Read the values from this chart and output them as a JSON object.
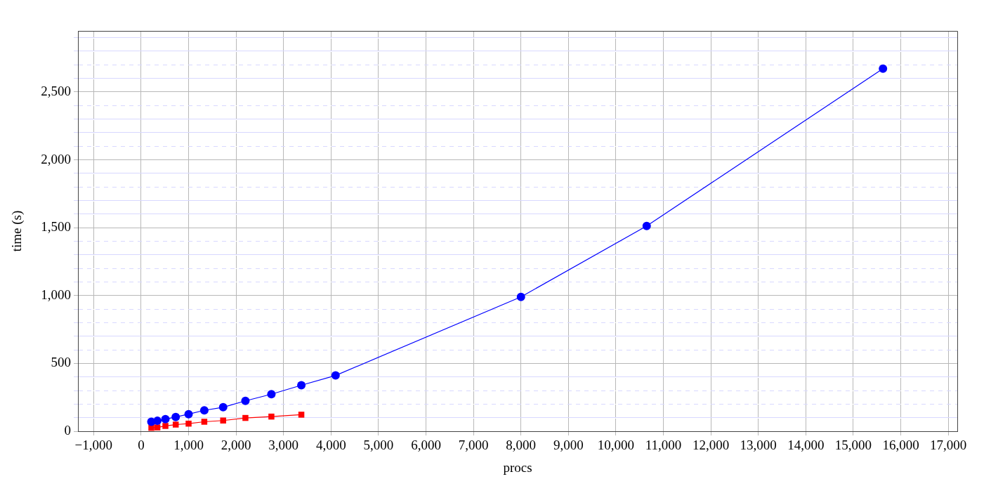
{
  "chart_data": {
    "type": "line",
    "xlabel": "procs",
    "ylabel": "time (s)",
    "xlim": [
      -1330,
      17190
    ],
    "ylim": [
      0,
      2950
    ],
    "xticks": [
      {
        "value": -1000,
        "label": "−1,000"
      },
      0,
      {
        "value": 1000,
        "label": "1,000"
      },
      {
        "value": 2000,
        "label": "2,000"
      },
      {
        "value": 3000,
        "label": "3,000"
      },
      {
        "value": 4000,
        "label": "4,000"
      },
      {
        "value": 5000,
        "label": "5,000"
      },
      {
        "value": 6000,
        "label": "6,000"
      },
      {
        "value": 7000,
        "label": "7,000"
      },
      {
        "value": 8000,
        "label": "8,000"
      },
      {
        "value": 9000,
        "label": "9,000"
      },
      {
        "value": 10000,
        "label": "10,000"
      },
      {
        "value": 11000,
        "label": "11,000"
      },
      {
        "value": 12000,
        "label": "12,000"
      },
      {
        "value": 13000,
        "label": "13,000"
      },
      {
        "value": 14000,
        "label": "14,000"
      },
      {
        "value": 15000,
        "label": "15,000"
      },
      {
        "value": 16000,
        "label": "16,000"
      },
      {
        "value": 17000,
        "label": "17,000"
      }
    ],
    "yticks": [
      0,
      {
        "value": 100,
        "label": null
      },
      {
        "value": 200,
        "label": null
      },
      {
        "value": 300,
        "label": null
      },
      {
        "value": 400,
        "label": null
      },
      500,
      {
        "value": 600,
        "label": null
      },
      {
        "value": 700,
        "label": null
      },
      {
        "value": 800,
        "label": null
      },
      {
        "value": 900,
        "label": null
      },
      {
        "value": 1000,
        "label": "1,000"
      },
      {
        "value": 1100,
        "label": null
      },
      {
        "value": 1200,
        "label": null
      },
      {
        "value": 1300,
        "label": null
      },
      {
        "value": 1400,
        "label": null
      },
      {
        "value": 1500,
        "label": "1,500"
      },
      {
        "value": 1600,
        "label": null
      },
      {
        "value": 1700,
        "label": null
      },
      {
        "value": 1800,
        "label": null
      },
      {
        "value": 1900,
        "label": null
      },
      {
        "value": 2000,
        "label": "2,000"
      },
      {
        "value": 2100,
        "label": null
      },
      {
        "value": 2200,
        "label": null
      },
      {
        "value": 2300,
        "label": null
      },
      {
        "value": 2400,
        "label": null
      },
      {
        "value": 2500,
        "label": "2,500"
      },
      {
        "value": 2600,
        "label": null
      },
      {
        "value": 2700,
        "label": null
      },
      {
        "value": 2800,
        "label": null
      },
      {
        "value": 2900,
        "label": null
      }
    ],
    "grid": true,
    "legend": false,
    "line_style": "solid",
    "series": [
      {
        "color": "#0000ff",
        "marker": "circle",
        "x": [
          216,
          343,
          512,
          729,
          1000,
          1331,
          1728,
          2197,
          2744,
          3375,
          4096,
          8000,
          10648,
          15625
        ],
        "values": [
          70,
          77,
          89,
          105,
          126,
          154,
          177,
          224,
          273,
          339,
          411,
          990,
          1512,
          2672
        ]
      },
      {
        "color": "#ff0000",
        "marker": "square",
        "x": [
          216,
          343,
          512,
          729,
          1000,
          1331,
          1728,
          2197,
          2744,
          3375
        ],
        "values": [
          25,
          28,
          39,
          49,
          56,
          70,
          79,
          98,
          108,
          122
        ]
      }
    ]
  }
}
